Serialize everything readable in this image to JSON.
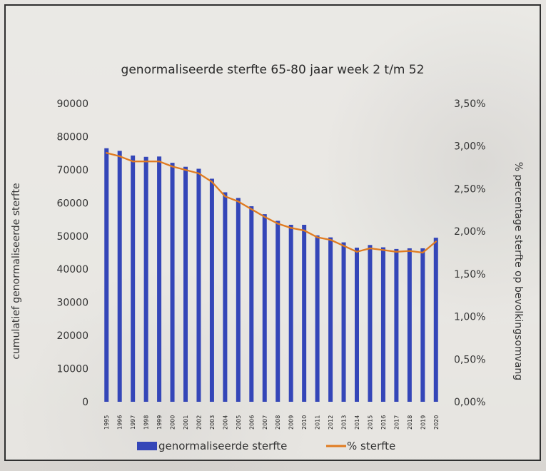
{
  "chart_data": {
    "type": "bar",
    "title": "genormaliseerde sterfte 65-80 jaar week 2 t/m 52",
    "ylabel": "cumulatief genormaliseerde sterfte",
    "y2label": "% percentage sterfte op bevolkingsomvang",
    "categories": [
      "1995",
      "1996",
      "1997",
      "1998",
      "1999",
      "2000",
      "2001",
      "2002",
      "2003",
      "2004",
      "2005",
      "2006",
      "2007",
      "2008",
      "2009",
      "2010",
      "2011",
      "2012",
      "2013",
      "2014",
      "2015",
      "2016",
      "2017",
      "2018",
      "2019",
      "2020"
    ],
    "ylim": [
      0,
      90000
    ],
    "y_ticks": [
      0,
      10000,
      20000,
      30000,
      40000,
      50000,
      60000,
      70000,
      80000,
      90000
    ],
    "y2lim": [
      0,
      0.035
    ],
    "y2_ticks": [
      "0,00%",
      "0,50%",
      "1,00%",
      "1,50%",
      "2,00%",
      "2,50%",
      "3,00%",
      "3,50%"
    ],
    "grid": false,
    "legend_placement": "bottom",
    "series": [
      {
        "name": "genormaliseerde sterfte",
        "kind": "bar",
        "axis": "left",
        "color": "#3446b8",
        "values": [
          76500,
          75700,
          74300,
          73900,
          74000,
          72100,
          70900,
          70300,
          67300,
          63200,
          61500,
          59000,
          56600,
          54600,
          53400,
          53400,
          50200,
          49600,
          48100,
          46500,
          47300,
          46600,
          46100,
          46300,
          46300,
          49500
        ]
      },
      {
        "name": "% sterfte",
        "kind": "line",
        "axis": "right",
        "color": "#e07b20",
        "values": [
          0.0292,
          0.0288,
          0.0282,
          0.0282,
          0.0282,
          0.0276,
          0.0272,
          0.0268,
          0.0258,
          0.0241,
          0.0235,
          0.0226,
          0.0217,
          0.0209,
          0.0204,
          0.0201,
          0.0193,
          0.019,
          0.0183,
          0.0176,
          0.018,
          0.0178,
          0.0176,
          0.0177,
          0.0175,
          0.0188
        ]
      }
    ]
  }
}
